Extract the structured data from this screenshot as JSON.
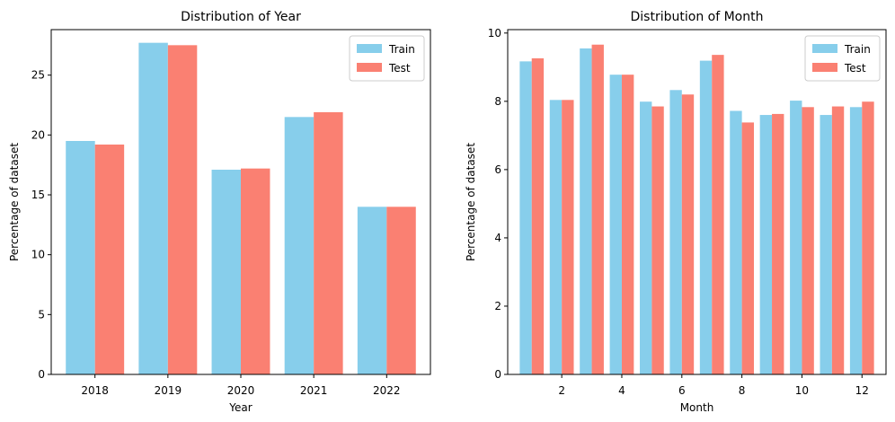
{
  "chart_data": [
    {
      "type": "bar",
      "title": "Distribution of Year",
      "xlabel": "Year",
      "ylabel": "Percentage of dataset",
      "categories": [
        "2018",
        "2019",
        "2020",
        "2021",
        "2022"
      ],
      "series": [
        {
          "name": "Train",
          "color": "#87CEEB",
          "values": [
            19.5,
            27.7,
            17.1,
            21.5,
            14.0
          ]
        },
        {
          "name": "Test",
          "color": "#FA8072",
          "values": [
            19.2,
            27.5,
            17.2,
            21.9,
            14.0
          ]
        }
      ],
      "ylim": [
        0,
        28.8
      ],
      "yticks": [
        0,
        5,
        10,
        15,
        20,
        25
      ],
      "legend": "top-right",
      "grid": false
    },
    {
      "type": "bar",
      "title": "Distribution of Month",
      "xlabel": "Month",
      "ylabel": "Percentage of dataset",
      "categories": [
        1,
        2,
        3,
        4,
        5,
        6,
        7,
        8,
        9,
        10,
        11,
        12
      ],
      "xticks": [
        2,
        4,
        6,
        8,
        10,
        12
      ],
      "series": [
        {
          "name": "Train",
          "color": "#87CEEB",
          "values": [
            9.17,
            8.04,
            9.55,
            8.78,
            7.99,
            8.33,
            9.19,
            7.72,
            7.6,
            8.02,
            7.6,
            7.83
          ]
        },
        {
          "name": "Test",
          "color": "#FA8072",
          "values": [
            9.26,
            8.04,
            9.66,
            8.78,
            7.85,
            8.2,
            9.36,
            7.38,
            7.63,
            7.83,
            7.85,
            7.99
          ]
        }
      ],
      "ylim": [
        0,
        10.1
      ],
      "yticks": [
        0,
        2,
        4,
        6,
        8,
        10
      ],
      "legend": "top-right",
      "grid": false
    }
  ]
}
